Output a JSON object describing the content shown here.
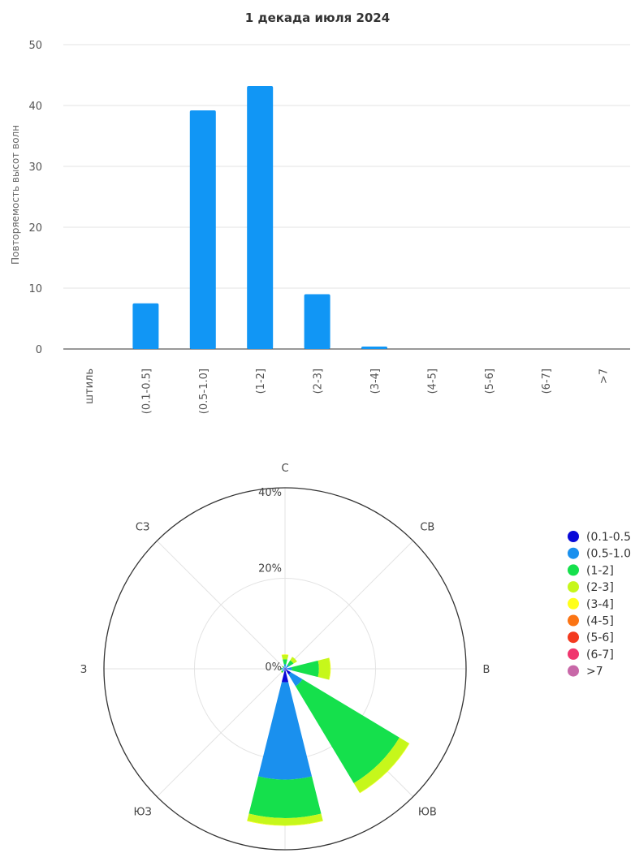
{
  "chart_data": [
    {
      "type": "bar",
      "title": "1 декада июля 2024",
      "ylabel": "Повторяемость высот волн",
      "xlabel": "",
      "categories": [
        "штиль",
        "(0.1-0.5]",
        "(0.5-1.0]",
        "(1-2]",
        "(2-3]",
        "(3-4]",
        "(4-5]",
        "(5-6]",
        "(6-7]",
        ">7"
      ],
      "values": [
        0,
        7.5,
        39.2,
        43.2,
        9.0,
        0.4,
        0,
        0,
        0,
        0
      ],
      "ylim": [
        0,
        50
      ],
      "yticks": [
        0,
        10,
        20,
        30,
        40,
        50
      ],
      "grid": true,
      "bar_color": "#1196f5"
    },
    {
      "type": "windrose",
      "directions": [
        "С",
        "СВ",
        "В",
        "ЮВ",
        "Ю",
        "ЮЗ",
        "З",
        "СЗ"
      ],
      "radial_ticks": [
        "0%",
        "20%",
        "40%"
      ],
      "rlim": [
        0,
        40
      ],
      "legend_position": "right",
      "series": [
        {
          "name": "(0.1-0.5",
          "color": "#0a0ad8",
          "values": [
            0.3,
            0.3,
            0.5,
            1.5,
            3.0,
            0.2,
            0.3,
            0.2
          ]
        },
        {
          "name": "(0.5-1.0",
          "color": "#1a90ee",
          "values": [
            0.7,
            0.7,
            1.0,
            3.0,
            21.5,
            0.5,
            0.4,
            0.3
          ]
        },
        {
          "name": "(1-2]",
          "color": "#15e04c",
          "values": [
            1.1,
            1.2,
            6.0,
            25.0,
            8.5,
            0.3,
            0.2,
            0.2
          ]
        },
        {
          "name": "(2-3]",
          "color": "#c6f71b",
          "values": [
            1.0,
            0.9,
            2.5,
            2.5,
            1.6,
            0.1,
            0.1,
            0.1
          ]
        },
        {
          "name": "(3-4]",
          "color": "#ffff1a",
          "values": [
            0.1,
            0.0,
            0.1,
            0.1,
            0.1,
            0.0,
            0.0,
            0.0
          ]
        },
        {
          "name": "(4-5]",
          "color": "#fb7414",
          "values": [
            0,
            0,
            0,
            0,
            0,
            0,
            0,
            0
          ]
        },
        {
          "name": "(5-6]",
          "color": "#f33a1f",
          "values": [
            0,
            0,
            0,
            0,
            0,
            0,
            0,
            0
          ]
        },
        {
          "name": "(6-7]",
          "color": "#f0366e",
          "values": [
            0,
            0,
            0,
            0,
            0,
            0,
            0,
            0
          ]
        },
        {
          "name": ">7",
          "color": "#c868a8",
          "values": [
            0,
            0,
            0,
            0,
            0,
            0,
            0,
            0
          ]
        }
      ]
    }
  ]
}
